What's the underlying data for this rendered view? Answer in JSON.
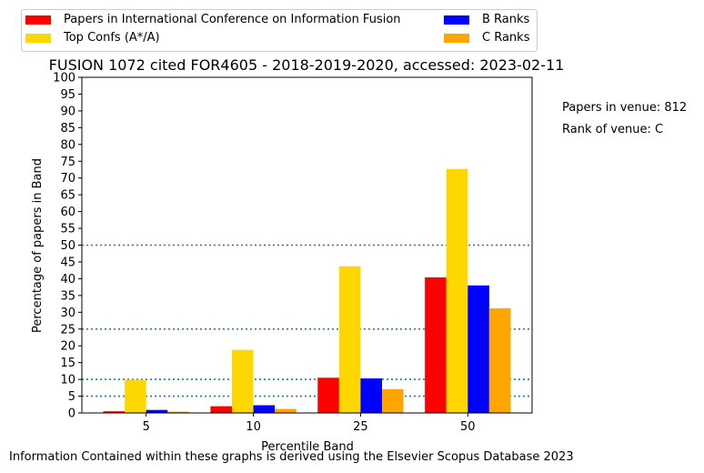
{
  "chart_data": {
    "type": "bar",
    "title": "FUSION 1072 cited FOR4605 - 2018-2019-2020, accessed: 2023-02-11",
    "xlabel": "Percentile Band",
    "ylabel": "Percentage of papers in Band",
    "categories": [
      "5",
      "10",
      "25",
      "50"
    ],
    "ylim": [
      0,
      100
    ],
    "yticks": [
      0,
      5,
      10,
      15,
      20,
      25,
      30,
      35,
      40,
      45,
      50,
      55,
      60,
      65,
      70,
      75,
      80,
      85,
      90,
      95,
      100
    ],
    "series": [
      {
        "name": "Papers in International Conference on Information Fusion",
        "color": "#ff0000",
        "values": [
          0.5,
          2.0,
          10.5,
          40.4
        ]
      },
      {
        "name": "Top Confs (A*/A)",
        "color": "#ffd700",
        "values": [
          9.9,
          18.8,
          43.7,
          72.7
        ]
      },
      {
        "name": "B Ranks",
        "color": "#0000ff",
        "values": [
          0.9,
          2.3,
          10.3,
          38.0
        ]
      },
      {
        "name": "C Ranks",
        "color": "#ffa500",
        "values": [
          0.4,
          1.2,
          7.1,
          31.2
        ]
      }
    ],
    "reference_lines": [
      5,
      10,
      25,
      50
    ],
    "reference_line_color": "#1f77b4",
    "legend_placement": "top-left, above plot"
  },
  "annotations": {
    "papers_in_venue": "Papers in venue: 812",
    "rank_of_venue": "Rank of venue: C"
  },
  "footer": "Information Contained within these graphs is derived using the Elsevier Scopus Database 2023"
}
